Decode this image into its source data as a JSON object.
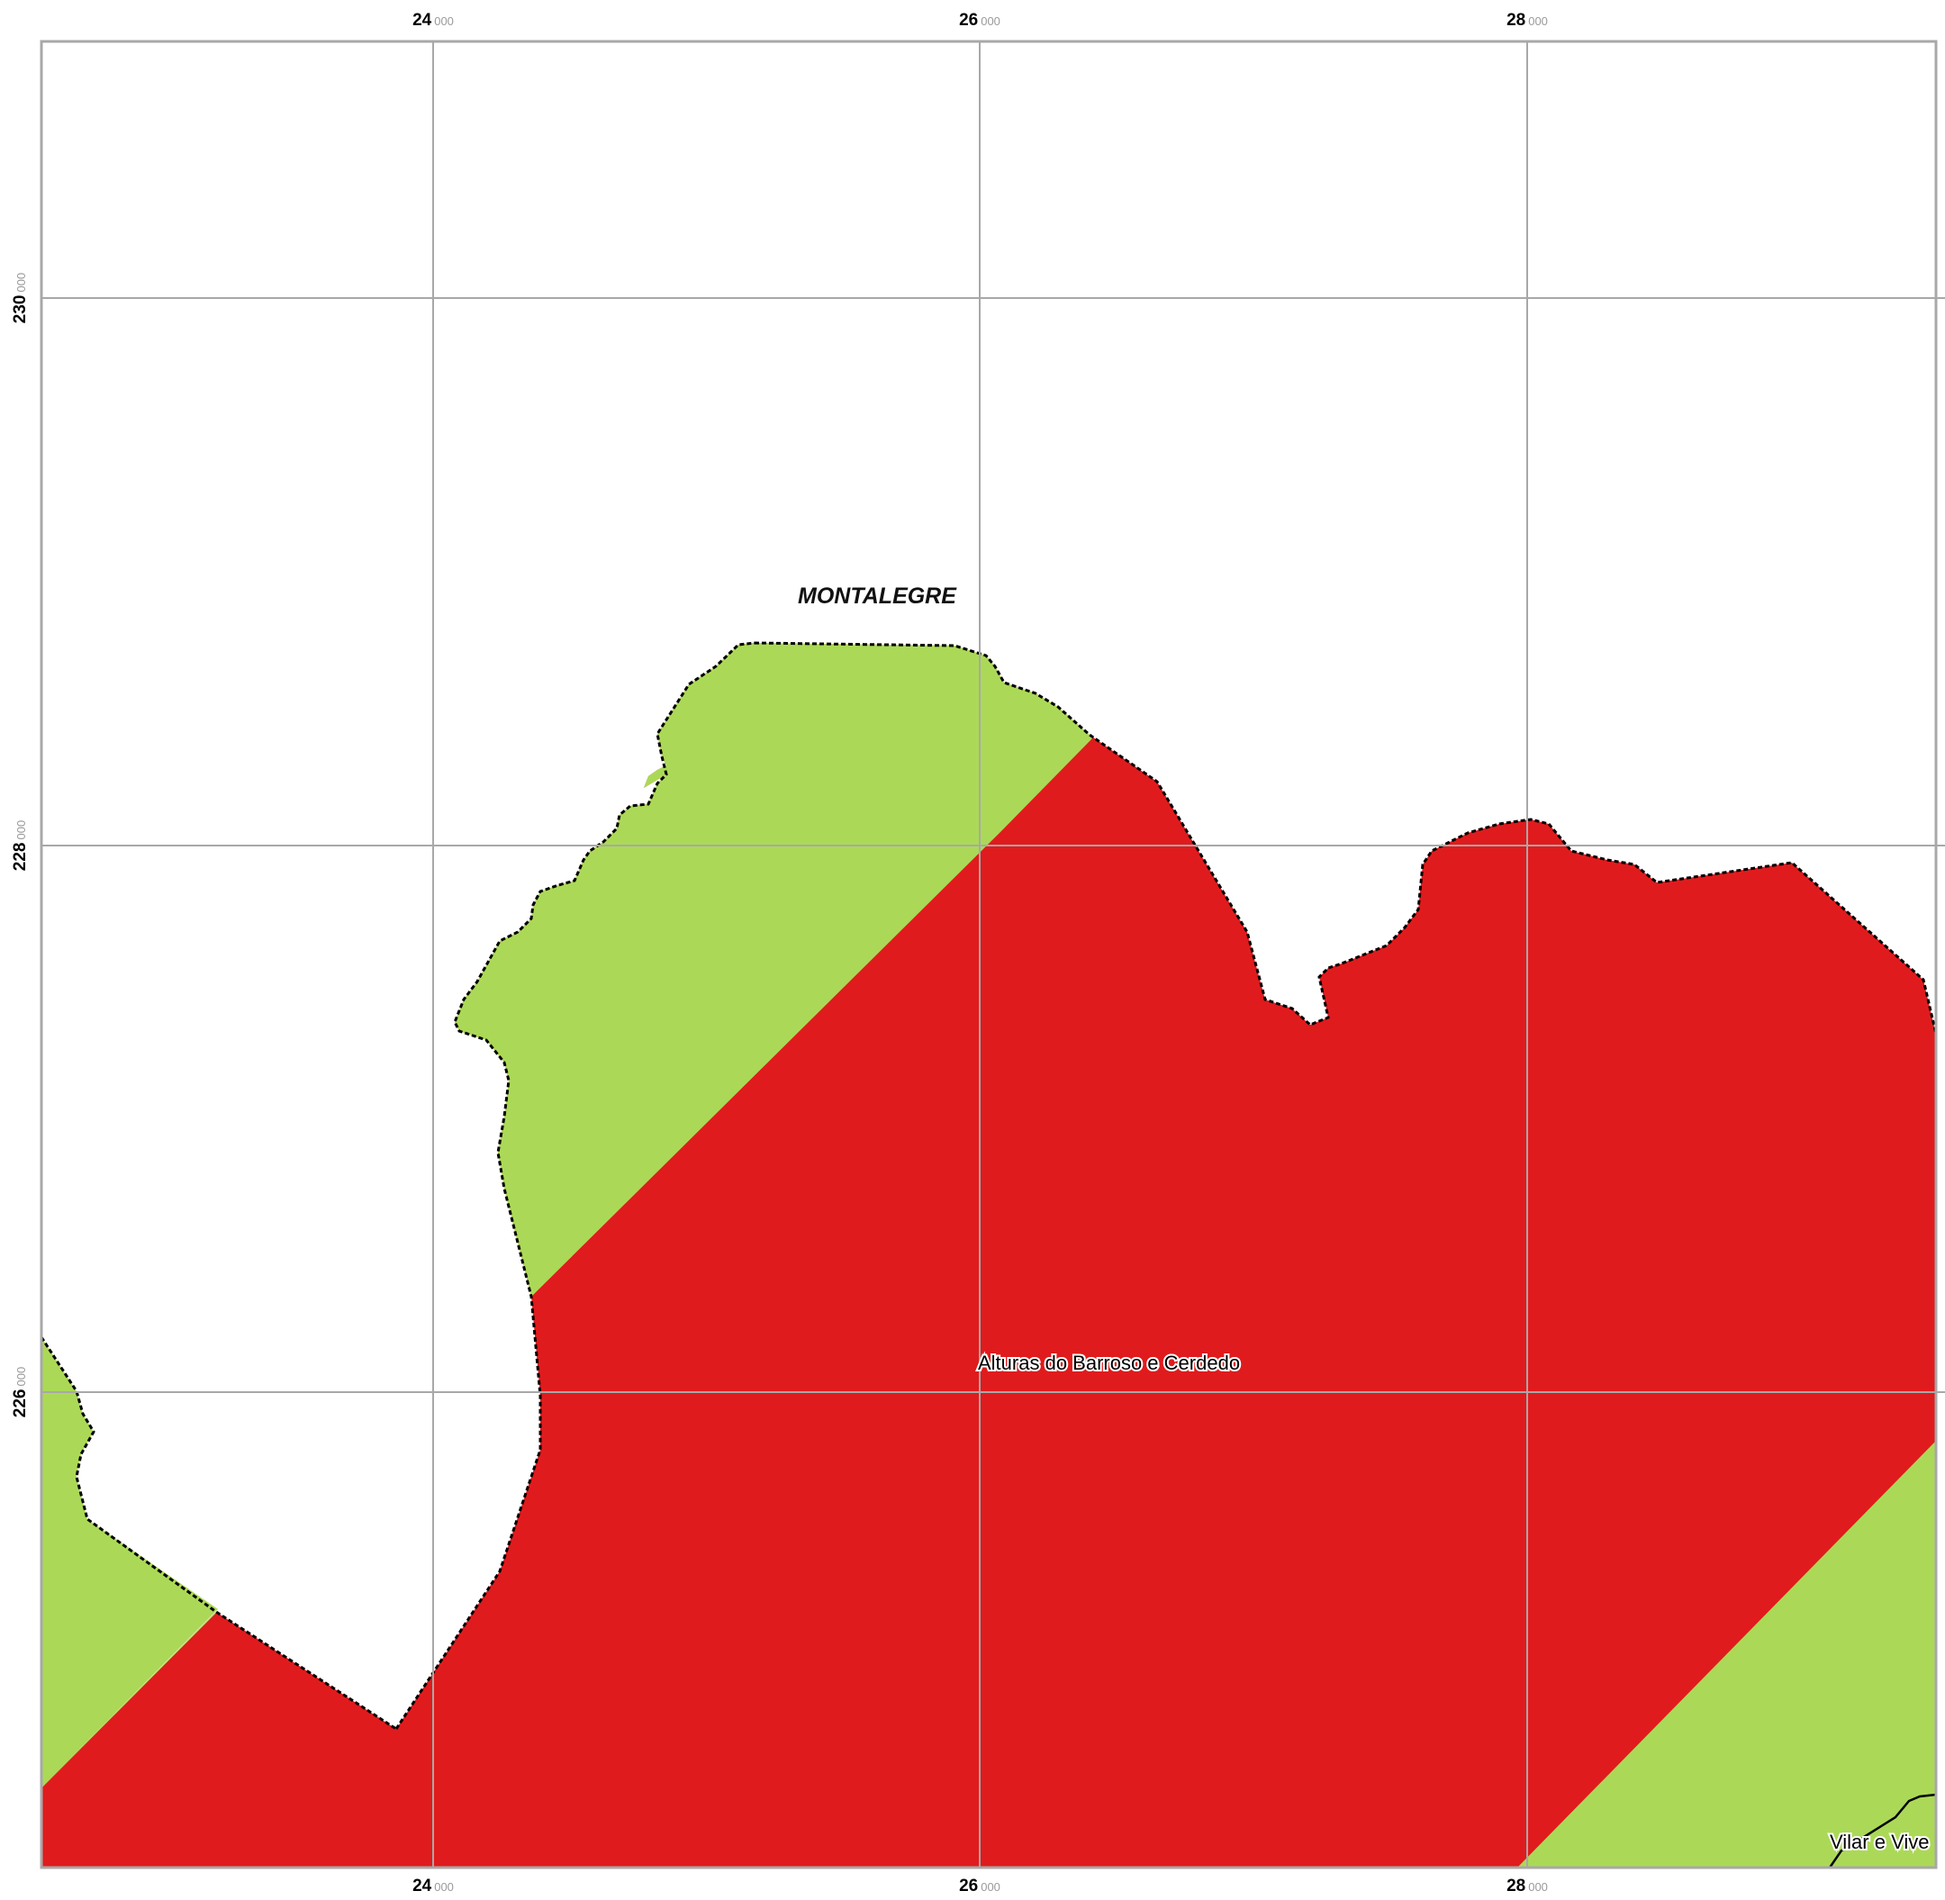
{
  "map": {
    "colors": {
      "background": "#ffffff",
      "grid": "#a8a8a8",
      "frame": "#a8a8a8",
      "zone_red": "#e01b1d",
      "zone_green": "#abd957",
      "boundary": "#000000"
    },
    "grid": {
      "x_ticks": [
        {
          "major": "24",
          "minor": "000"
        },
        {
          "major": "26",
          "minor": "000"
        },
        {
          "major": "28",
          "minor": "000"
        }
      ],
      "y_ticks": [
        {
          "major": "230",
          "minor": "000"
        },
        {
          "major": "228",
          "minor": "000"
        },
        {
          "major": "226",
          "minor": "000"
        }
      ]
    },
    "labels": {
      "municipality": "MONTALEGRE",
      "parish_main": "Alturas do Barroso e Cerdedo",
      "parish_corner": "Vilar e Vive"
    },
    "legend": null
  }
}
